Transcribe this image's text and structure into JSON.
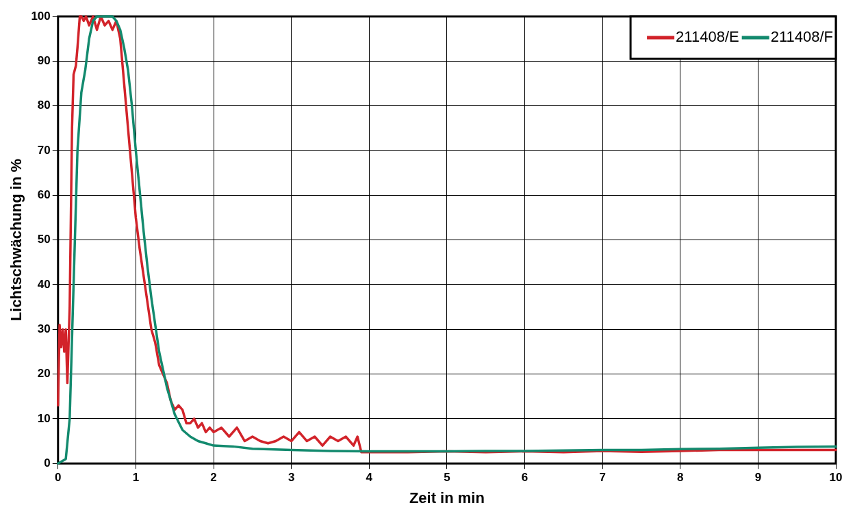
{
  "chart_data": {
    "type": "line",
    "xlabel": "Zeit in min",
    "ylabel": "Lichtschwächung in %",
    "xlim": [
      0,
      10
    ],
    "ylim": [
      0,
      100
    ],
    "xticks": [
      0,
      1,
      2,
      3,
      4,
      5,
      6,
      7,
      8,
      9,
      10
    ],
    "yticks": [
      0,
      10,
      20,
      30,
      40,
      50,
      60,
      70,
      80,
      90,
      100
    ],
    "grid": true,
    "legend": "top right",
    "marker": "none",
    "line_style": "solid",
    "series": [
      {
        "name": "211408/E",
        "color": "#d2232a",
        "x": [
          0,
          0.02,
          0.04,
          0.06,
          0.08,
          0.1,
          0.12,
          0.15,
          0.18,
          0.2,
          0.23,
          0.25,
          0.28,
          0.3,
          0.33,
          0.36,
          0.4,
          0.45,
          0.5,
          0.55,
          0.6,
          0.65,
          0.7,
          0.75,
          0.8,
          0.85,
          0.9,
          0.95,
          1.0,
          1.05,
          1.1,
          1.15,
          1.2,
          1.25,
          1.3,
          1.35,
          1.4,
          1.45,
          1.5,
          1.55,
          1.6,
          1.65,
          1.7,
          1.75,
          1.8,
          1.85,
          1.9,
          1.95,
          2.0,
          2.1,
          2.2,
          2.3,
          2.4,
          2.5,
          2.6,
          2.7,
          2.8,
          2.9,
          3.0,
          3.1,
          3.2,
          3.3,
          3.4,
          3.5,
          3.6,
          3.7,
          3.8,
          3.85,
          3.9,
          4.2,
          4.5,
          5.0,
          5.5,
          6.0,
          6.5,
          7.0,
          7.5,
          8.0,
          8.5,
          9.0,
          9.5,
          10.0
        ],
        "values": [
          13,
          31,
          26,
          30,
          25,
          30,
          18,
          35,
          75,
          87,
          89,
          93,
          100,
          100,
          99,
          100,
          98,
          100,
          97,
          100,
          98,
          99,
          97,
          99,
          95,
          85,
          75,
          65,
          55,
          48,
          42,
          36,
          30,
          27,
          22,
          20,
          18,
          14,
          12,
          13,
          12,
          9,
          9,
          10,
          8,
          9,
          7,
          8,
          7,
          8,
          6,
          8,
          5,
          6,
          5,
          4.5,
          5,
          6,
          5,
          7,
          5,
          6,
          4,
          6,
          5,
          6,
          4,
          6,
          2.5,
          2.5,
          2.5,
          2.7,
          2.5,
          2.7,
          2.5,
          2.8,
          2.6,
          2.8,
          3,
          3,
          3,
          3
        ]
      },
      {
        "name": "211408/F",
        "color": "#138a6e",
        "x": [
          0,
          0.1,
          0.15,
          0.2,
          0.25,
          0.3,
          0.35,
          0.4,
          0.45,
          0.5,
          0.6,
          0.7,
          0.75,
          0.8,
          0.85,
          0.9,
          0.95,
          1.0,
          1.05,
          1.1,
          1.15,
          1.2,
          1.3,
          1.4,
          1.5,
          1.6,
          1.7,
          1.8,
          1.9,
          2.0,
          2.25,
          2.5,
          3.0,
          3.5,
          4.0,
          4.5,
          5.0,
          5.5,
          6.0,
          6.5,
          7.0,
          7.5,
          8.0,
          8.5,
          9.0,
          9.5,
          10.0
        ],
        "values": [
          0,
          1,
          10,
          40,
          70,
          83,
          88,
          95,
          99,
          100,
          100,
          100,
          99,
          97,
          93,
          88,
          80,
          70,
          61,
          52,
          44,
          37,
          25,
          17,
          11,
          7.5,
          6,
          5,
          4.5,
          4,
          3.8,
          3.3,
          3,
          2.8,
          2.7,
          2.7,
          2.7,
          2.8,
          2.8,
          2.9,
          3,
          3,
          3.2,
          3.3,
          3.5,
          3.7,
          3.8
        ]
      }
    ]
  }
}
